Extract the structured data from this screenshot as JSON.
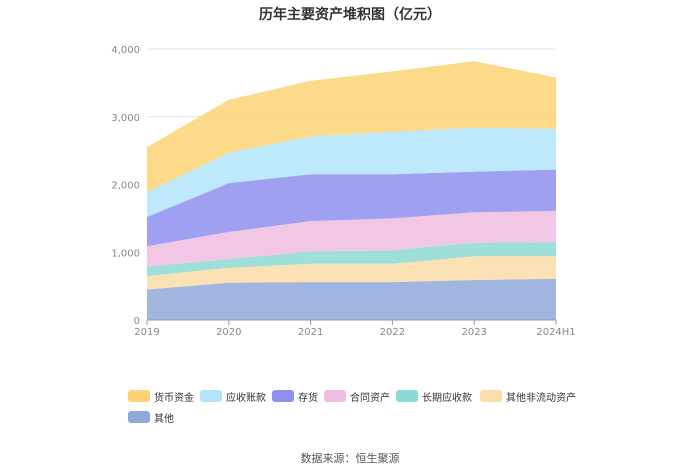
{
  "chart_data": {
    "type": "area",
    "stacked": true,
    "title": "历年主要资产堆积图（亿元）",
    "categories": [
      "2019",
      "2020",
      "2021",
      "2022",
      "2023",
      "2024H1"
    ],
    "y_ticks": [
      "0",
      "1,000",
      "2,000",
      "3,000",
      "4,000"
    ],
    "ylim": [
      0,
      4000
    ],
    "grid": true,
    "legend_position": "bottom",
    "series": [
      {
        "name": "其他",
        "color": "#8fa9da",
        "values": [
          450,
          550,
          560,
          560,
          590,
          610
        ]
      },
      {
        "name": "其他非流动资产",
        "color": "#fcdca8",
        "values": [
          200,
          220,
          270,
          270,
          350,
          330
        ]
      },
      {
        "name": "长期应收款",
        "color": "#8dd9d4",
        "values": [
          140,
          130,
          180,
          200,
          200,
          210
        ]
      },
      {
        "name": "合同资产",
        "color": "#f0bde0",
        "values": [
          300,
          400,
          450,
          470,
          450,
          460
        ]
      },
      {
        "name": "存货",
        "color": "#8f8ff0",
        "values": [
          430,
          720,
          690,
          650,
          600,
          610
        ]
      },
      {
        "name": "应收账款",
        "color": "#b3e4fb",
        "values": [
          370,
          450,
          560,
          630,
          650,
          600
        ]
      },
      {
        "name": "货币资金",
        "color": "#fdd275",
        "values": [
          660,
          780,
          820,
          890,
          980,
          760
        ]
      }
    ]
  },
  "legend_order": [
    "货币资金",
    "应收账款",
    "存货",
    "合同资产",
    "长期应收款",
    "其他非流动资产",
    "其他"
  ],
  "source": "数据来源：恒生聚源"
}
